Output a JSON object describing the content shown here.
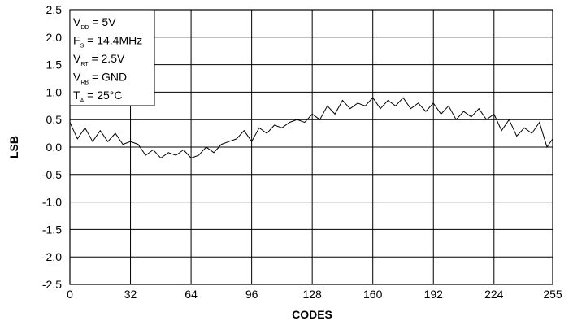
{
  "chart_data": {
    "type": "line",
    "xlabel": "CODES",
    "ylabel": "LSB",
    "xlim": [
      0,
      255
    ],
    "ylim": [
      -2.5,
      2.5
    ],
    "x_ticks": [
      "0",
      "32",
      "64",
      "96",
      "128",
      "160",
      "192",
      "224",
      "255"
    ],
    "y_ticks": [
      "2.5",
      "2.0",
      "1.5",
      "1.0",
      "0.5",
      "0.0",
      "-0.5",
      "-1.0",
      "-1.5",
      "-2.0",
      "-2.5"
    ],
    "grid": true,
    "annotation": {
      "lines": [
        {
          "main": "V",
          "sub": "DD",
          "rest": " = 5V"
        },
        {
          "main": "F",
          "sub": "S",
          "rest": " = 14.4MHz"
        },
        {
          "main": "V",
          "sub": "RT",
          "rest": " = 2.5V"
        },
        {
          "main": "V",
          "sub": "RB",
          "rest": " = GND"
        },
        {
          "main": "T",
          "sub": "A",
          "rest": " = 25°C"
        }
      ]
    },
    "series": [
      {
        "x": [
          0,
          4,
          8,
          12,
          16,
          20,
          24,
          28,
          32,
          36,
          40,
          44,
          48,
          52,
          56,
          60,
          64,
          68,
          72,
          76,
          80,
          84,
          88,
          92,
          96,
          100,
          104,
          108,
          112,
          116,
          120,
          124,
          128,
          132,
          136,
          140,
          144,
          148,
          152,
          156,
          160,
          164,
          168,
          172,
          176,
          180,
          184,
          188,
          192,
          196,
          200,
          204,
          208,
          212,
          216,
          220,
          224,
          228,
          232,
          236,
          240,
          244,
          248,
          252,
          255
        ],
        "values": [
          0.45,
          0.15,
          0.35,
          0.1,
          0.3,
          0.1,
          0.25,
          0.05,
          0.1,
          0.05,
          -0.15,
          -0.05,
          -0.2,
          -0.1,
          -0.15,
          -0.05,
          -0.2,
          -0.15,
          0.0,
          -0.1,
          0.05,
          0.1,
          0.15,
          0.3,
          0.1,
          0.35,
          0.25,
          0.4,
          0.35,
          0.45,
          0.5,
          0.45,
          0.6,
          0.5,
          0.75,
          0.6,
          0.85,
          0.7,
          0.8,
          0.75,
          0.9,
          0.7,
          0.85,
          0.75,
          0.9,
          0.7,
          0.8,
          0.65,
          0.8,
          0.6,
          0.75,
          0.5,
          0.65,
          0.55,
          0.7,
          0.5,
          0.6,
          0.3,
          0.5,
          0.2,
          0.35,
          0.25,
          0.45,
          0.0,
          0.15
        ]
      }
    ]
  }
}
